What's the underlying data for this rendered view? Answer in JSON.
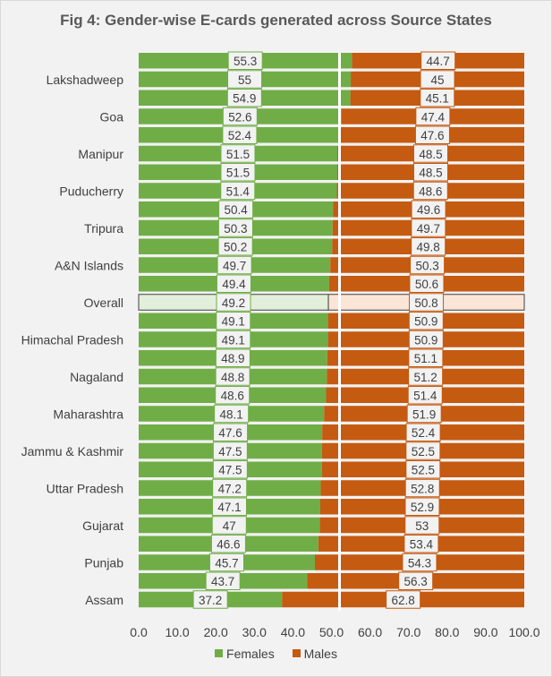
{
  "chart_data": {
    "type": "bar",
    "orientation": "horizontal",
    "stacked": "100%",
    "title": "Fig 4: Gender-wise E-cards generated across Source States",
    "categories": [
      "",
      "Lakshadweep",
      "",
      "Goa",
      "",
      "Manipur",
      "",
      "Puducherry",
      "",
      "Tripura",
      "",
      "A&N Islands",
      "",
      "Overall",
      "",
      "Himachal Pradesh",
      "",
      "Nagaland",
      "",
      "Maharashtra",
      "",
      "Jammu & Kashmir",
      "",
      "Uttar  Pradesh",
      "",
      "Gujarat",
      "",
      "Punjab",
      "",
      "Assam"
    ],
    "series": [
      {
        "name": "Females",
        "color": "#70ad47",
        "values": [
          55.3,
          55.0,
          54.9,
          52.6,
          52.4,
          51.5,
          51.5,
          51.4,
          50.4,
          50.3,
          50.2,
          49.7,
          49.4,
          49.2,
          49.1,
          49.1,
          48.9,
          48.8,
          48.6,
          48.1,
          47.6,
          47.5,
          47.5,
          47.2,
          47.1,
          47.0,
          46.6,
          45.7,
          43.7,
          37.2
        ]
      },
      {
        "name": "Males",
        "color": "#c55a11",
        "values": [
          44.7,
          45.0,
          45.1,
          47.4,
          47.6,
          48.5,
          48.5,
          48.6,
          49.6,
          49.7,
          49.8,
          50.3,
          50.6,
          50.8,
          50.9,
          50.9,
          51.1,
          51.2,
          51.4,
          51.9,
          52.4,
          52.5,
          52.5,
          52.8,
          52.9,
          53.0,
          53.4,
          54.3,
          56.3,
          62.8
        ]
      }
    ],
    "highlight_category": "Overall",
    "highlight_colors": {
      "Females": "#e2efda",
      "Males": "#fbe5d6"
    },
    "xlim": [
      0,
      100
    ],
    "xticks": [
      "0.0",
      "10.0",
      "20.0",
      "30.0",
      "40.0",
      "50.0",
      "60.0",
      "70.0",
      "80.0",
      "90.0",
      "100.0"
    ],
    "grid": false,
    "legend": "bottom",
    "data_labels": true
  }
}
